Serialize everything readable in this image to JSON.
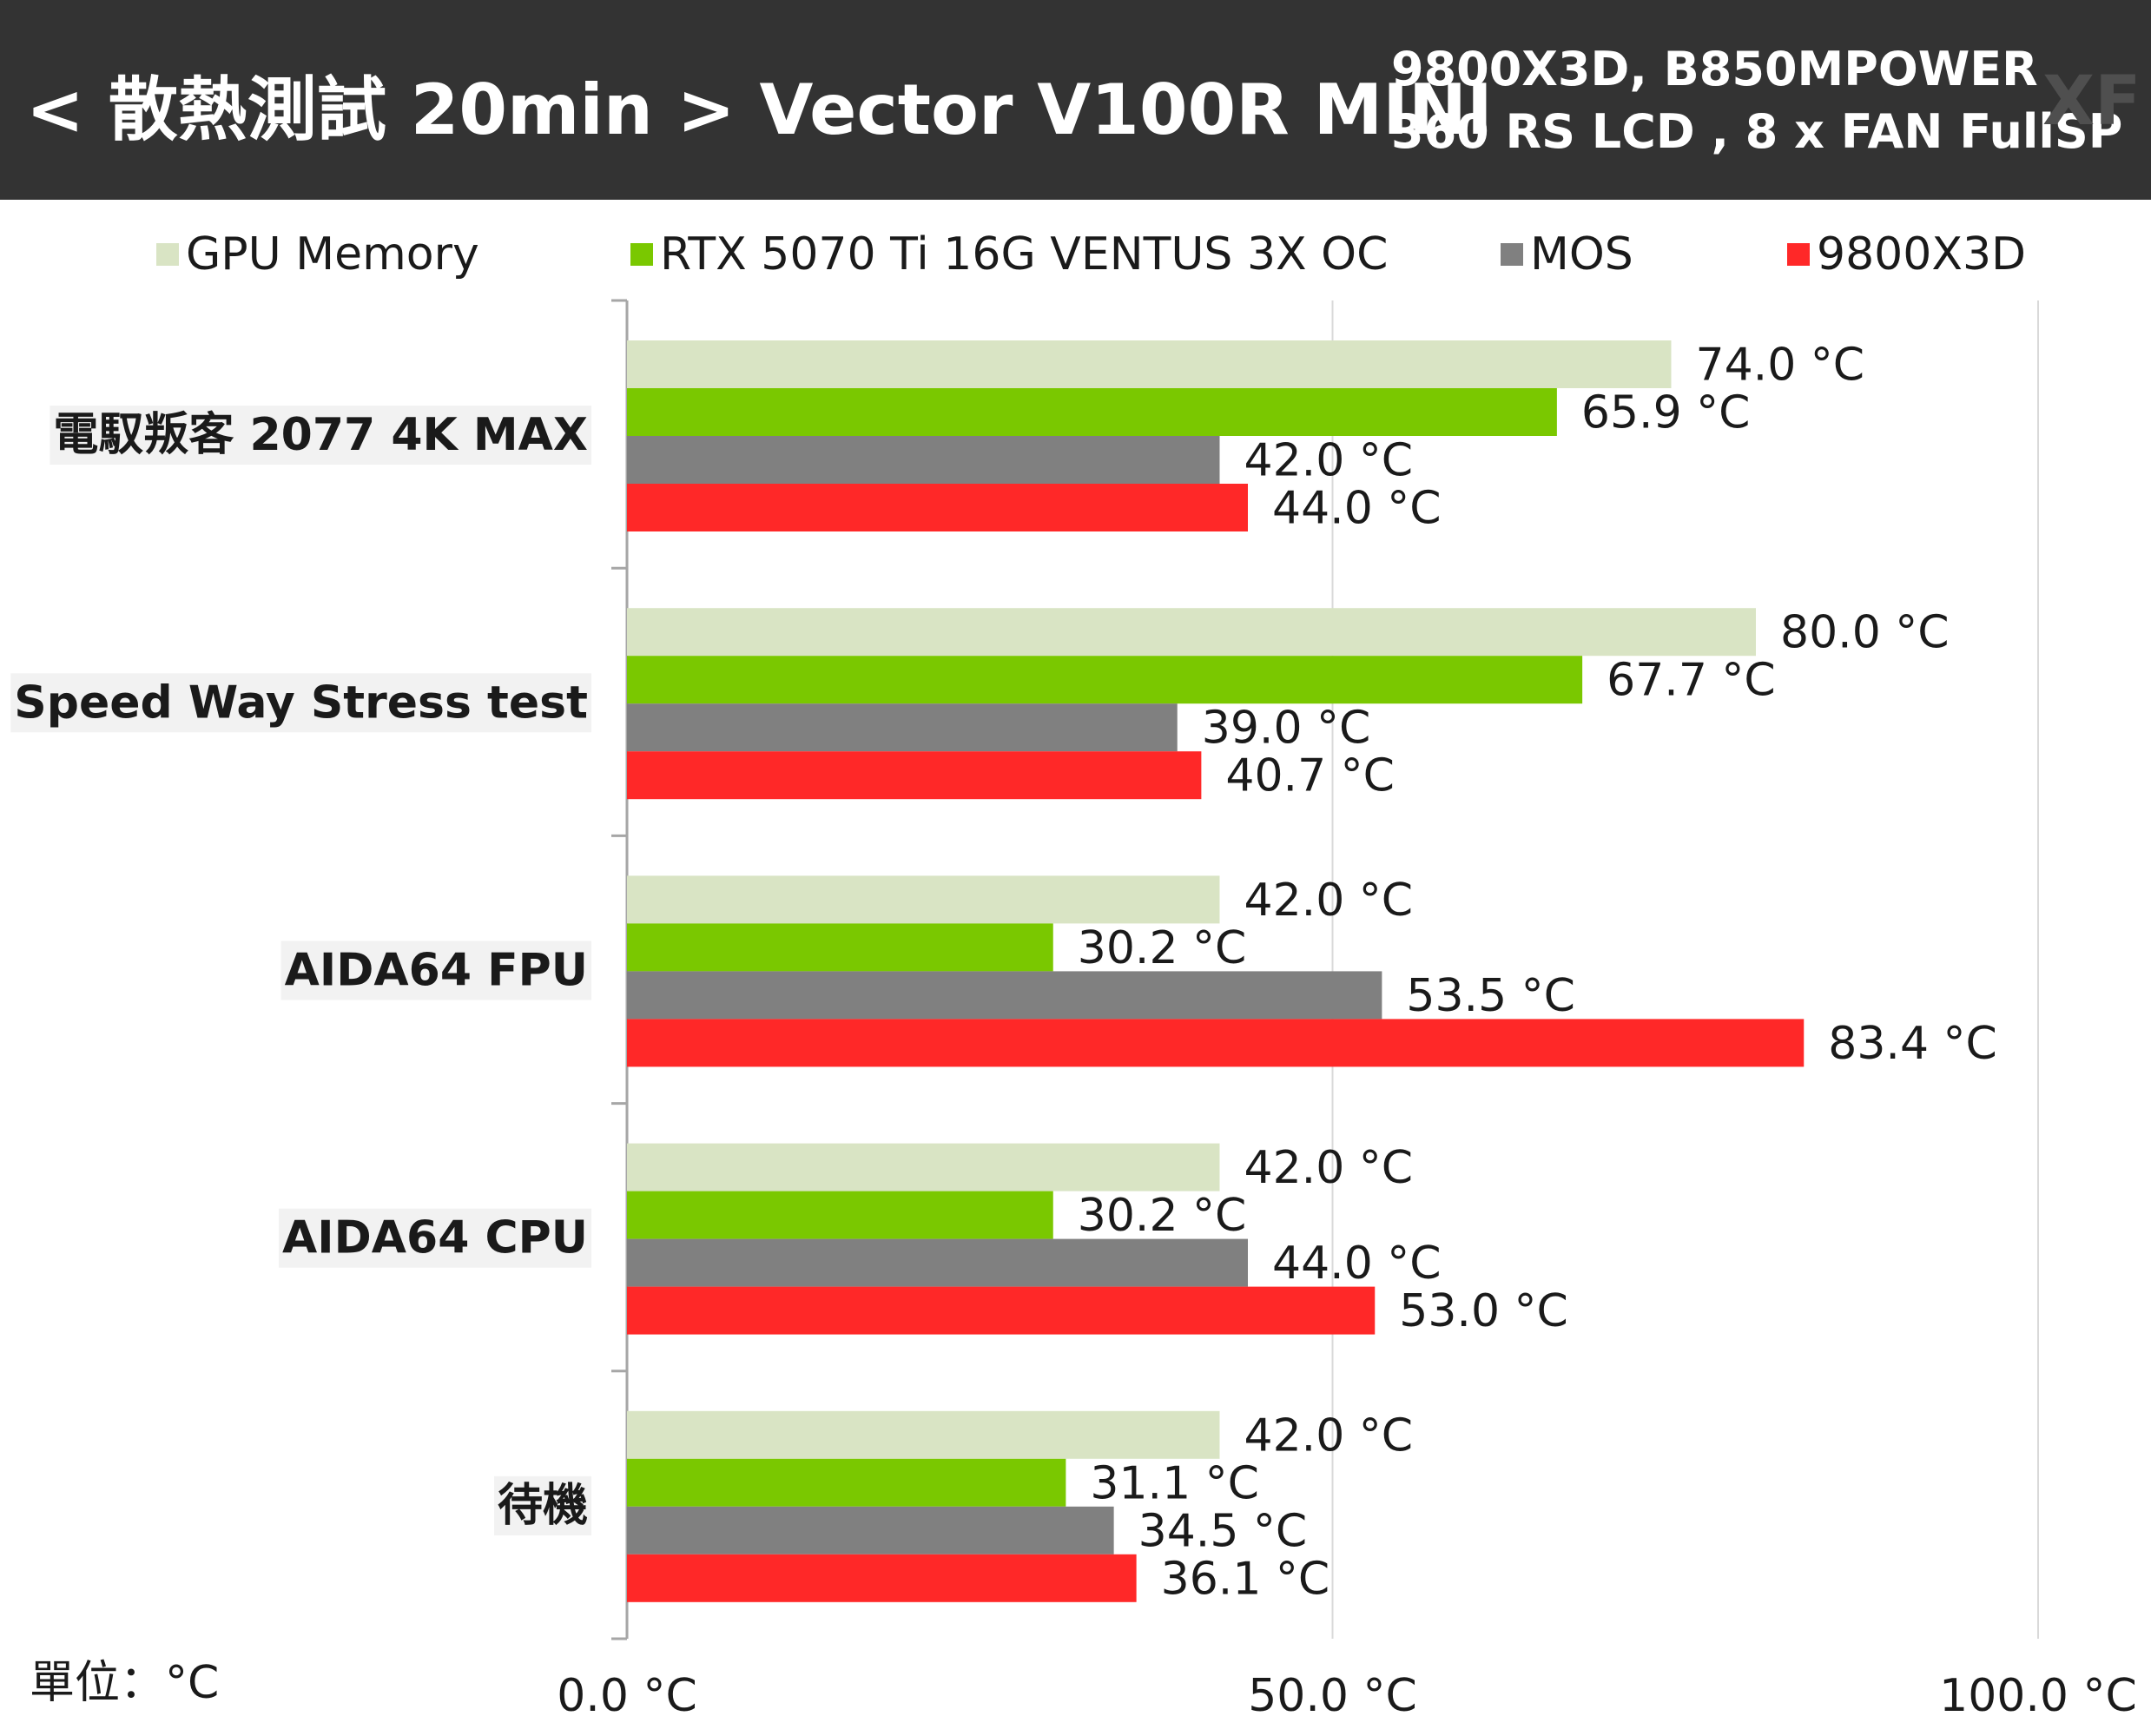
{
  "header": {
    "title": "< 散熱測試 20min > Vector V100R MINI",
    "subtitle_line1": "9800X3D, B850MPOWER",
    "subtitle_line2": "360 RS LCD , 8 x FAN FullSP",
    "watermark": "XF"
  },
  "unit_label": "單位：°C",
  "chart_data": {
    "type": "bar",
    "orientation": "horizontal",
    "title": "< 散熱測試 20min > Vector V100R MINI",
    "xlabel": "",
    "ylabel": "",
    "xlim": [
      0,
      100
    ],
    "x_ticks": [
      0,
      50,
      100
    ],
    "x_tick_labels": [
      "0.0 °C",
      "50.0 °C",
      "100.0 °C"
    ],
    "grid": true,
    "legend_position": "top",
    "value_suffix": " °C",
    "categories": [
      "電馭叛客 2077 4K MAX",
      "Speed Way Stress test",
      "AIDA64 FPU",
      "AIDA64 CPU",
      "待機"
    ],
    "series": [
      {
        "name": "GPU Memory",
        "color": "#d9e4c4",
        "values": [
          74.0,
          80.0,
          42.0,
          42.0,
          42.0
        ]
      },
      {
        "name": "RTX 5070 Ti 16G VENTUS 3X OC",
        "color": "#7ac800",
        "values": [
          65.9,
          67.7,
          30.2,
          30.2,
          31.1
        ]
      },
      {
        "name": "MOS",
        "color": "#808080",
        "values": [
          42.0,
          39.0,
          53.5,
          44.0,
          34.5
        ]
      },
      {
        "name": "9800X3D",
        "color": "#ff2828",
        "values": [
          44.0,
          40.7,
          83.4,
          53.0,
          36.1
        ]
      }
    ]
  }
}
